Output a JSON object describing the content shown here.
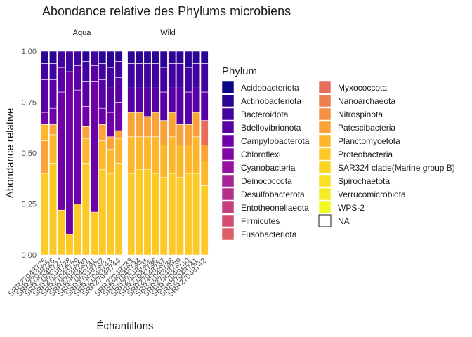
{
  "chart_data": {
    "type": "bar",
    "stacked": true,
    "title": "Abondance relative des Phylums microbiens",
    "xlabel": "Échantillons",
    "ylabel": "Abondance relative",
    "ylim": [
      0,
      1
    ],
    "yticks": [
      "0.00",
      "0.25",
      "0.50",
      "0.75",
      "1.00"
    ],
    "grid": false,
    "legend_position": "right",
    "legend": {
      "title": "Phylum",
      "entries": [
        {
          "name": "Acidobacteriota",
          "color": "#0d0887"
        },
        {
          "name": "Actinobacteriota",
          "color": "#2c0594"
        },
        {
          "name": "Bacteroidota",
          "color": "#43039e"
        },
        {
          "name": "Bdellovibrionota",
          "color": "#5901a5"
        },
        {
          "name": "Campylobacterota",
          "color": "#6e00a8"
        },
        {
          "name": "Chloroflexi",
          "color": "#8305a7"
        },
        {
          "name": "Cyanobacteria",
          "color": "#9511a1"
        },
        {
          "name": "Deinococcota",
          "color": "#a72197"
        },
        {
          "name": "Desulfobacterota",
          "color": "#b6308b"
        },
        {
          "name": "Entotheonellaeota",
          "color": "#c5407e"
        },
        {
          "name": "Firmicutes",
          "color": "#d14e72"
        },
        {
          "name": "Fusobacteriota",
          "color": "#dd5e66"
        },
        {
          "name": "Myxococcota",
          "color": "#e76e5b"
        },
        {
          "name": "Nanoarchaeota",
          "color": "#ef7f4f"
        },
        {
          "name": "Nitrospinota",
          "color": "#f69044"
        },
        {
          "name": "Patescibacteria",
          "color": "#fba238"
        },
        {
          "name": "Planctomycetota",
          "color": "#feb72d"
        },
        {
          "name": "Proteobacteria",
          "color": "#fdc926"
        },
        {
          "name": "SAR324 clade(Marine group B)",
          "color": "#fbd524"
        },
        {
          "name": "Spirochaetota",
          "color": "#f8e125"
        },
        {
          "name": "Verrucomicrobiota",
          "color": "#f3ee27"
        },
        {
          "name": "WPS-2",
          "color": "#f0f921"
        },
        {
          "name": "NA",
          "color": "#ffffff"
        }
      ]
    },
    "facets": [
      {
        "name": "Aqua",
        "samples": [
          {
            "id": "SRR27048725",
            "series": [
              {
                "phylum": "Proteobacteria",
                "value": 0.4
              },
              {
                "phylum": "Patescibacteria",
                "value": 0.16
              },
              {
                "phylum": "Planctomycetota",
                "value": 0.08
              },
              {
                "phylum": "Campylobacterota",
                "value": 0.06
              },
              {
                "phylum": "Bdellovibrionota",
                "value": 0.16
              },
              {
                "phylum": "Bacteroidota",
                "value": 0.08
              },
              {
                "phylum": "Actinobacteriota",
                "value": 0.06
              }
            ]
          },
          {
            "id": "SRR27048726",
            "series": [
              {
                "phylum": "Proteobacteria",
                "value": 0.45
              },
              {
                "phylum": "Planctomycetota",
                "value": 0.14
              },
              {
                "phylum": "Patescibacteria",
                "value": 0.05
              },
              {
                "phylum": "Campylobacterota",
                "value": 0.08
              },
              {
                "phylum": "Bdellovibrionota",
                "value": 0.14
              },
              {
                "phylum": "Bacteroidota",
                "value": 0.08
              },
              {
                "phylum": "Actinobacteriota",
                "value": 0.06
              }
            ]
          },
          {
            "id": "SRR27048727",
            "series": [
              {
                "phylum": "Proteobacteria",
                "value": 0.22
              },
              {
                "phylum": "Campylobacterota",
                "value": 0.58
              },
              {
                "phylum": "Bdellovibrionota",
                "value": 0.12
              },
              {
                "phylum": "Bacteroidota",
                "value": 0.08
              }
            ]
          },
          {
            "id": "SRR27048728",
            "series": [
              {
                "phylum": "Proteobacteria",
                "value": 0.1
              },
              {
                "phylum": "Campylobacterota",
                "value": 0.8
              },
              {
                "phylum": "Bacteroidota",
                "value": 0.1
              }
            ]
          },
          {
            "id": "SRR27048729",
            "series": [
              {
                "phylum": "Proteobacteria",
                "value": 0.25
              },
              {
                "phylum": "Campylobacterota",
                "value": 0.56
              },
              {
                "phylum": "Bdellovibrionota",
                "value": 0.12
              },
              {
                "phylum": "Bacteroidota",
                "value": 0.07
              }
            ]
          },
          {
            "id": "SRR27048730",
            "series": [
              {
                "phylum": "Proteobacteria",
                "value": 0.45
              },
              {
                "phylum": "Planctomycetota",
                "value": 0.12
              },
              {
                "phylum": "Patescibacteria",
                "value": 0.06
              },
              {
                "phylum": "Campylobacterota",
                "value": 0.1
              },
              {
                "phylum": "Bdellovibrionota",
                "value": 0.12
              },
              {
                "phylum": "Bacteroidota",
                "value": 0.1
              },
              {
                "phylum": "Actinobacteriota",
                "value": 0.05
              }
            ]
          },
          {
            "id": "SRR27048731",
            "series": [
              {
                "phylum": "Proteobacteria",
                "value": 0.21
              },
              {
                "phylum": "Campylobacterota",
                "value": 0.64
              },
              {
                "phylum": "Bdellovibrionota",
                "value": 0.08
              },
              {
                "phylum": "Bacteroidota",
                "value": 0.07
              }
            ]
          },
          {
            "id": "SRR27048732",
            "series": [
              {
                "phylum": "Proteobacteria",
                "value": 0.42
              },
              {
                "phylum": "Planctomycetota",
                "value": 0.14
              },
              {
                "phylum": "Patescibacteria",
                "value": 0.08
              },
              {
                "phylum": "Campylobacterota",
                "value": 0.08
              },
              {
                "phylum": "Bdellovibrionota",
                "value": 0.14
              },
              {
                "phylum": "Bacteroidota",
                "value": 0.08
              },
              {
                "phylum": "Actinobacteriota",
                "value": 0.06
              }
            ]
          },
          {
            "id": "SRR27048743",
            "series": [
              {
                "phylum": "Proteobacteria",
                "value": 0.4
              },
              {
                "phylum": "Planctomycetota",
                "value": 0.12
              },
              {
                "phylum": "Patescibacteria",
                "value": 0.06
              },
              {
                "phylum": "Campylobacterota",
                "value": 0.12
              },
              {
                "phylum": "Bdellovibrionota",
                "value": 0.12
              },
              {
                "phylum": "Bacteroidota",
                "value": 0.1
              },
              {
                "phylum": "Actinobacteriota",
                "value": 0.08
              }
            ]
          },
          {
            "id": "SRR27048744",
            "series": [
              {
                "phylum": "Proteobacteria",
                "value": 0.45
              },
              {
                "phylum": "Planctomycetota",
                "value": 0.12
              },
              {
                "phylum": "Patescibacteria",
                "value": 0.04
              },
              {
                "phylum": "Campylobacterota",
                "value": 0.14
              },
              {
                "phylum": "Bdellovibrionota",
                "value": 0.12
              },
              {
                "phylum": "Bacteroidota",
                "value": 0.08
              },
              {
                "phylum": "Actinobacteriota",
                "value": 0.05
              }
            ]
          }
        ]
      },
      {
        "name": "Wild",
        "samples": [
          {
            "id": "SRR27048733",
            "series": [
              {
                "phylum": "Proteobacteria",
                "value": 0.4
              },
              {
                "phylum": "Planctomycetota",
                "value": 0.18
              },
              {
                "phylum": "Patescibacteria",
                "value": 0.12
              },
              {
                "phylum": "Bdellovibrionota",
                "value": 0.12
              },
              {
                "phylum": "Bacteroidota",
                "value": 0.12
              },
              {
                "phylum": "Actinobacteriota",
                "value": 0.06
              }
            ]
          },
          {
            "id": "SRR27048734",
            "series": [
              {
                "phylum": "Proteobacteria",
                "value": 0.42
              },
              {
                "phylum": "Planctomycetota",
                "value": 0.16
              },
              {
                "phylum": "Patescibacteria",
                "value": 0.12
              },
              {
                "phylum": "Bdellovibrionota",
                "value": 0.12
              },
              {
                "phylum": "Bacteroidota",
                "value": 0.12
              },
              {
                "phylum": "Actinobacteriota",
                "value": 0.06
              }
            ]
          },
          {
            "id": "SRR27048735",
            "series": [
              {
                "phylum": "Proteobacteria",
                "value": 0.42
              },
              {
                "phylum": "Planctomycetota",
                "value": 0.16
              },
              {
                "phylum": "Patescibacteria",
                "value": 0.1
              },
              {
                "phylum": "Bdellovibrionota",
                "value": 0.14
              },
              {
                "phylum": "Bacteroidota",
                "value": 0.12
              },
              {
                "phylum": "Actinobacteriota",
                "value": 0.06
              }
            ]
          },
          {
            "id": "SRR27048736",
            "series": [
              {
                "phylum": "Proteobacteria",
                "value": 0.4
              },
              {
                "phylum": "Planctomycetota",
                "value": 0.18
              },
              {
                "phylum": "Patescibacteria",
                "value": 0.12
              },
              {
                "phylum": "Bdellovibrionota",
                "value": 0.12
              },
              {
                "phylum": "Bacteroidota",
                "value": 0.12
              },
              {
                "phylum": "Actinobacteriota",
                "value": 0.06
              }
            ]
          },
          {
            "id": "SRR27048737",
            "series": [
              {
                "phylum": "Proteobacteria",
                "value": 0.38
              },
              {
                "phylum": "Planctomycetota",
                "value": 0.16
              },
              {
                "phylum": "Patescibacteria",
                "value": 0.12
              },
              {
                "phylum": "Bdellovibrionota",
                "value": 0.14
              },
              {
                "phylum": "Bacteroidota",
                "value": 0.12
              },
              {
                "phylum": "Actinobacteriota",
                "value": 0.08
              }
            ]
          },
          {
            "id": "SRR27048738",
            "series": [
              {
                "phylum": "Proteobacteria",
                "value": 0.4
              },
              {
                "phylum": "Planctomycetota",
                "value": 0.18
              },
              {
                "phylum": "Patescibacteria",
                "value": 0.12
              },
              {
                "phylum": "Bdellovibrionota",
                "value": 0.12
              },
              {
                "phylum": "Bacteroidota",
                "value": 0.12
              },
              {
                "phylum": "Actinobacteriota",
                "value": 0.06
              }
            ]
          },
          {
            "id": "SRR27048739",
            "series": [
              {
                "phylum": "Proteobacteria",
                "value": 0.38
              },
              {
                "phylum": "Planctomycetota",
                "value": 0.16
              },
              {
                "phylum": "Patescibacteria",
                "value": 0.1
              },
              {
                "phylum": "Bdellovibrionota",
                "value": 0.18
              },
              {
                "phylum": "Bacteroidota",
                "value": 0.12
              },
              {
                "phylum": "Actinobacteriota",
                "value": 0.06
              }
            ]
          },
          {
            "id": "SRR27048740",
            "series": [
              {
                "phylum": "Proteobacteria",
                "value": 0.4
              },
              {
                "phylum": "Planctomycetota",
                "value": 0.14
              },
              {
                "phylum": "Patescibacteria",
                "value": 0.1
              },
              {
                "phylum": "Bdellovibrionota",
                "value": 0.16
              },
              {
                "phylum": "Bacteroidota",
                "value": 0.12
              },
              {
                "phylum": "Actinobacteriota",
                "value": 0.08
              }
            ]
          },
          {
            "id": "SRR27048741",
            "series": [
              {
                "phylum": "Proteobacteria",
                "value": 0.4
              },
              {
                "phylum": "Planctomycetota",
                "value": 0.18
              },
              {
                "phylum": "Patescibacteria",
                "value": 0.12
              },
              {
                "phylum": "Bdellovibrionota",
                "value": 0.12
              },
              {
                "phylum": "Bacteroidota",
                "value": 0.12
              },
              {
                "phylum": "Actinobacteriota",
                "value": 0.06
              }
            ]
          },
          {
            "id": "SRR27048742",
            "series": [
              {
                "phylum": "Proteobacteria",
                "value": 0.34
              },
              {
                "phylum": "Planctomycetota",
                "value": 0.12
              },
              {
                "phylum": "Patescibacteria",
                "value": 0.08
              },
              {
                "phylum": "Myxococcota",
                "value": 0.12
              },
              {
                "phylum": "Bdellovibrionota",
                "value": 0.14
              },
              {
                "phylum": "Bacteroidota",
                "value": 0.14
              },
              {
                "phylum": "Actinobacteriota",
                "value": 0.06
              }
            ]
          }
        ]
      }
    ]
  }
}
